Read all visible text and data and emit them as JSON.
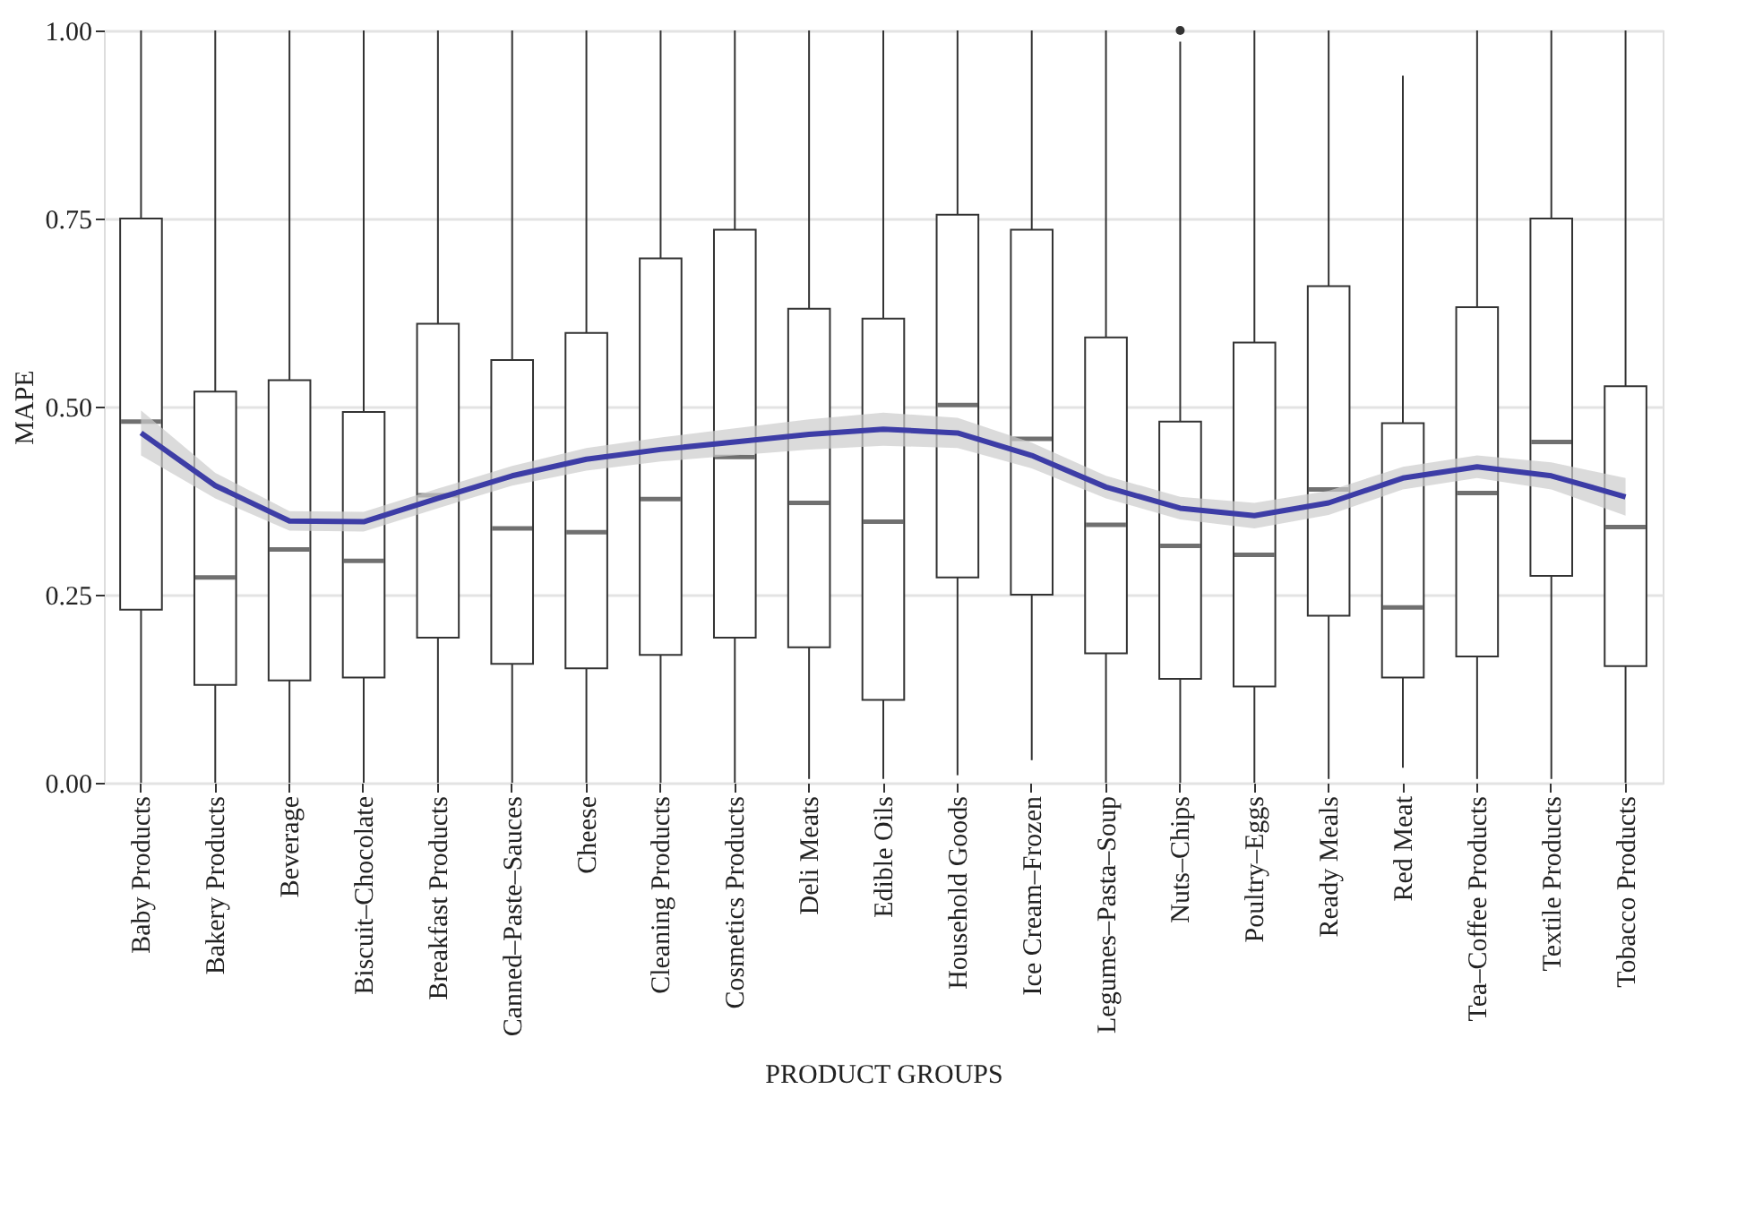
{
  "chart_data": {
    "type": "box",
    "xlabel": "PRODUCT GROUPS",
    "ylabel": "MAPE",
    "categories": [
      "Baby Products",
      "Bakery Products",
      "Beverage",
      "Biscuit–Chocolate",
      "Breakfast Products",
      "Canned–Paste–Sauces",
      "Cheese",
      "Cleaning Products",
      "Cosmetics Products",
      "Deli Meats",
      "Edible Oils",
      "Household Goods",
      "Ice Cream–Frozen",
      "Legumes–Pasta–Soup",
      "Nuts–Chips",
      "Poultry–Eggs",
      "Ready Meals",
      "Red Meat",
      "Tea–Coffee Products",
      "Textile Products",
      "Tobacco Products"
    ],
    "ylim": [
      0,
      1
    ],
    "yticks": [
      {
        "value": 0,
        "label": "0.00"
      },
      {
        "value": 0.25,
        "label": "0.25"
      },
      {
        "value": 0.5,
        "label": "0.50"
      },
      {
        "value": 0.75,
        "label": "0.75"
      },
      {
        "value": 1,
        "label": "1.00"
      }
    ],
    "grid": "y",
    "color": "#333333",
    "boxes": [
      {
        "low": 0,
        "q1": 0.23,
        "median": 0.48,
        "q3": 0.75,
        "high": 1
      },
      {
        "low": 0,
        "q1": 0.13,
        "median": 0.273,
        "q3": 0.52,
        "high": 1
      },
      {
        "low": 0,
        "q1": 0.136,
        "median": 0.31,
        "q3": 0.535,
        "high": 1
      },
      {
        "low": 0,
        "q1": 0.14,
        "median": 0.295,
        "q3": 0.493,
        "high": 1
      },
      {
        "low": 0,
        "q1": 0.193,
        "median": 0.382,
        "q3": 0.61,
        "high": 1
      },
      {
        "low": 0,
        "q1": 0.158,
        "median": 0.338,
        "q3": 0.562,
        "high": 1
      },
      {
        "low": 0,
        "q1": 0.152,
        "median": 0.333,
        "q3": 0.598,
        "high": 1
      },
      {
        "low": 0,
        "q1": 0.17,
        "median": 0.377,
        "q3": 0.697,
        "high": 1
      },
      {
        "low": 0,
        "q1": 0.193,
        "median": 0.433,
        "q3": 0.735,
        "high": 1
      },
      {
        "low": 0.005,
        "q1": 0.18,
        "median": 0.372,
        "q3": 0.63,
        "high": 1
      },
      {
        "low": 0.005,
        "q1": 0.11,
        "median": 0.347,
        "q3": 0.617,
        "high": 1
      },
      {
        "low": 0.01,
        "q1": 0.273,
        "median": 0.502,
        "q3": 0.755,
        "high": 1
      },
      {
        "low": 0.03,
        "q1": 0.25,
        "median": 0.457,
        "q3": 0.735,
        "high": 1
      },
      {
        "low": 0,
        "q1": 0.172,
        "median": 0.343,
        "q3": 0.592,
        "high": 1
      },
      {
        "low": 0,
        "q1": 0.138,
        "median": 0.315,
        "q3": 0.48,
        "high": 0.985,
        "outliers": [
          1.0
        ]
      },
      {
        "low": 0,
        "q1": 0.128,
        "median": 0.303,
        "q3": 0.585,
        "high": 1
      },
      {
        "low": 0.005,
        "q1": 0.222,
        "median": 0.39,
        "q3": 0.66,
        "high": 1
      },
      {
        "low": 0.02,
        "q1": 0.14,
        "median": 0.233,
        "q3": 0.478,
        "high": 0.94
      },
      {
        "low": 0.005,
        "q1": 0.168,
        "median": 0.385,
        "q3": 0.632,
        "high": 1
      },
      {
        "low": 0.005,
        "q1": 0.275,
        "median": 0.453,
        "q3": 0.75,
        "high": 1
      },
      {
        "low": 0,
        "q1": 0.155,
        "median": 0.34,
        "q3": 0.527,
        "high": 1
      }
    ],
    "series": [
      {
        "type": "line",
        "color": "#3d3da6",
        "values": [
          0.465,
          0.395,
          0.348,
          0.347,
          0.378,
          0.408,
          0.43,
          0.443,
          0.453,
          0.463,
          0.47,
          0.465,
          0.435,
          0.393,
          0.365,
          0.355,
          0.372,
          0.405,
          0.42,
          0.408,
          0.38
        ],
        "lower": [
          0.435,
          0.378,
          0.335,
          0.334,
          0.365,
          0.395,
          0.415,
          0.427,
          0.435,
          0.443,
          0.448,
          0.445,
          0.418,
          0.378,
          0.35,
          0.338,
          0.356,
          0.39,
          0.405,
          0.39,
          0.355
        ],
        "upper": [
          0.495,
          0.412,
          0.361,
          0.36,
          0.391,
          0.421,
          0.445,
          0.459,
          0.471,
          0.483,
          0.492,
          0.485,
          0.452,
          0.408,
          0.38,
          0.372,
          0.388,
          0.42,
          0.435,
          0.426,
          0.405
        ]
      }
    ]
  }
}
